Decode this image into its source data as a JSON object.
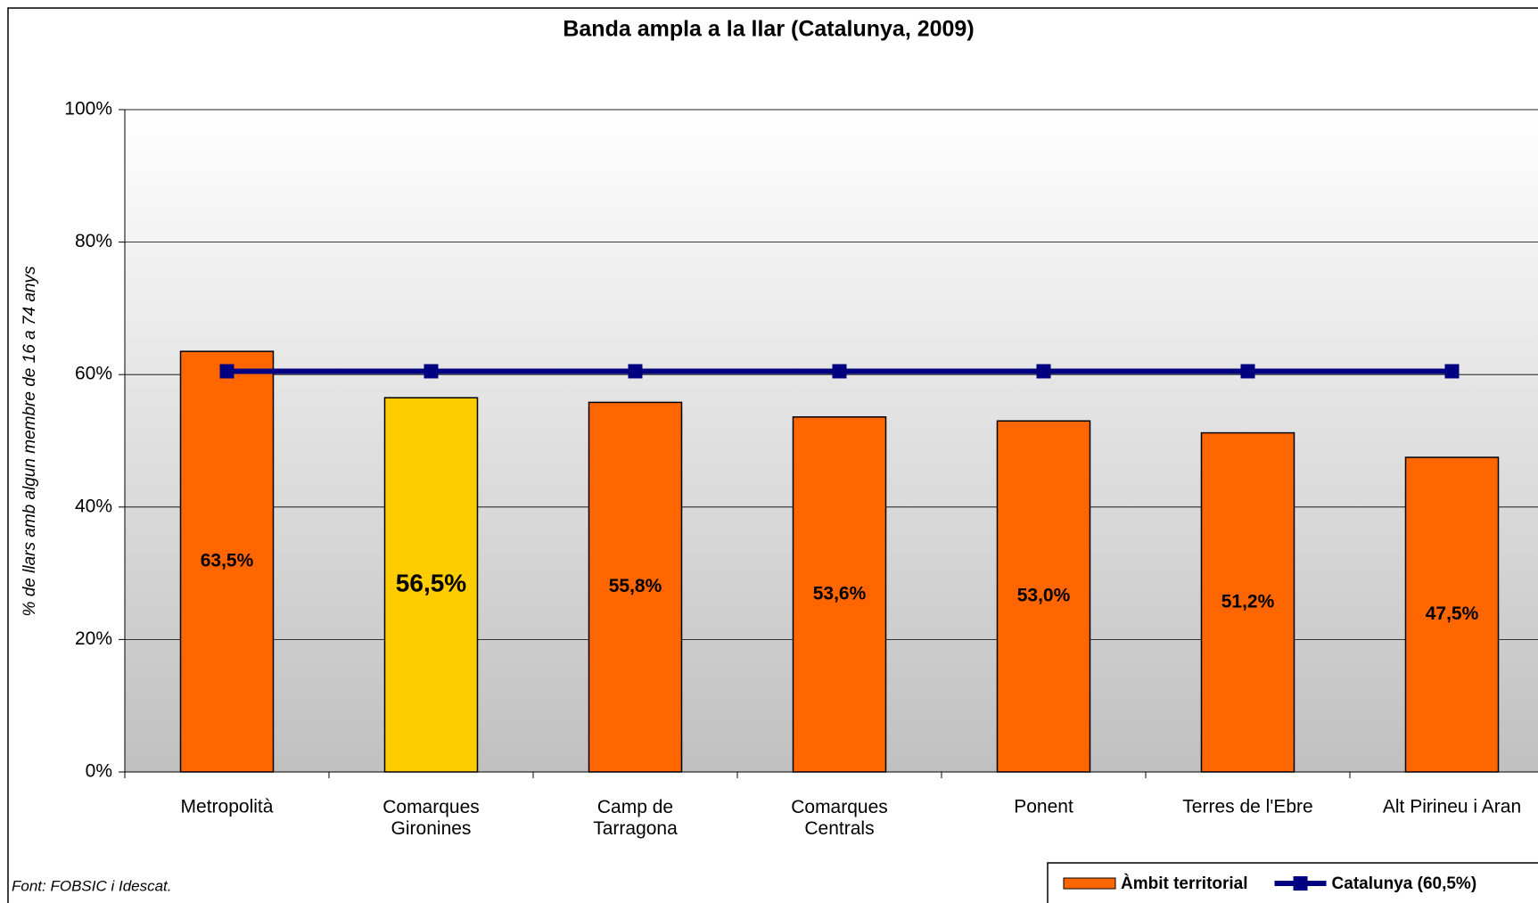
{
  "chart_data": {
    "type": "bar",
    "title": "Banda ampla a la llar (Catalunya, 2009)",
    "y_label": "% de llars amb algun membre de 16 a 74 anys",
    "source": "Font: FOBSIC i Idescat.",
    "categories": [
      "Metropolità",
      "Comarques\nGironines",
      "Camp de\nTarragona",
      "Comarques\nCentrals",
      "Ponent",
      "Terres de l'Ebre",
      "Alt Pirineu i Aran"
    ],
    "series": [
      {
        "name": "Àmbit territorial",
        "type": "bar",
        "color": "#ff6600",
        "colors": [
          "#ff6600",
          "#ffcc00",
          "#ff6600",
          "#ff6600",
          "#ff6600",
          "#ff6600",
          "#ff6600"
        ],
        "values": [
          63.5,
          56.5,
          55.8,
          53.6,
          53.0,
          51.2,
          47.5
        ],
        "value_labels": [
          "63,5%",
          "56,5%",
          "55,8%",
          "53,6%",
          "53,0%",
          "51,2%",
          "47,5%"
        ]
      },
      {
        "name": "Catalunya (60,5%)",
        "type": "line",
        "color": "#000080",
        "marker": "square",
        "values": [
          60.5,
          60.5,
          60.5,
          60.5,
          60.5,
          60.5,
          60.5
        ]
      }
    ],
    "ylim": [
      0,
      100
    ],
    "yticks": [
      {
        "value": 0,
        "label": "0%"
      },
      {
        "value": 20,
        "label": "20%"
      },
      {
        "value": 40,
        "label": "40%"
      },
      {
        "value": 60,
        "label": "60%"
      },
      {
        "value": 80,
        "label": "80%"
      },
      {
        "value": 100,
        "label": "100%"
      }
    ],
    "grid": true,
    "legend": "bottom-right"
  }
}
